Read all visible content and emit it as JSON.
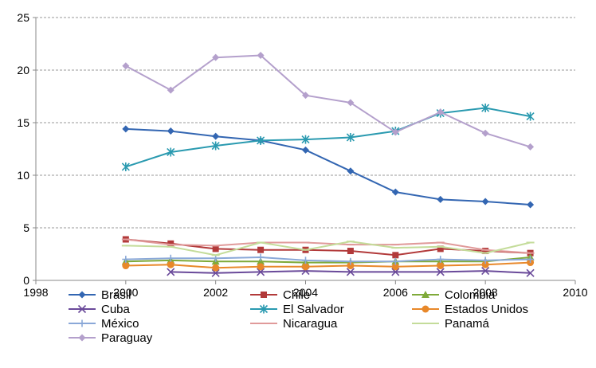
{
  "chart_data": {
    "type": "line",
    "title": "",
    "xlabel": "",
    "ylabel": "",
    "xlim": [
      1998,
      2010
    ],
    "ylim": [
      0,
      25
    ],
    "x_ticks": [
      1998,
      2000,
      2002,
      2004,
      2006,
      2008,
      2010
    ],
    "y_ticks": [
      0,
      5,
      10,
      15,
      20,
      25
    ],
    "grid": "horizontal dashed",
    "legend_position": "bottom",
    "x": [
      2000,
      2001,
      2002,
      2003,
      2004,
      2005,
      2006,
      2007,
      2008,
      2009
    ],
    "series": [
      {
        "name": "Brasil",
        "color": "#3366b2",
        "marker": "diamond",
        "values": [
          14.4,
          14.2,
          13.7,
          13.3,
          12.4,
          10.4,
          8.4,
          7.7,
          7.5,
          7.2
        ]
      },
      {
        "name": "Chile",
        "color": "#b23a3a",
        "marker": "square",
        "values": [
          3.9,
          3.5,
          3.0,
          2.9,
          2.9,
          2.8,
          2.4,
          3.0,
          2.8,
          2.6
        ]
      },
      {
        "name": "Colombia",
        "color": "#7faa3a",
        "marker": "triangle",
        "values": [
          1.8,
          1.9,
          1.8,
          1.8,
          1.7,
          1.7,
          1.8,
          1.8,
          1.8,
          2.2
        ]
      },
      {
        "name": "Cuba",
        "color": "#6a4a9a",
        "marker": "x",
        "values": [
          null,
          0.8,
          0.7,
          0.8,
          0.9,
          0.8,
          0.8,
          0.8,
          0.9,
          0.7
        ]
      },
      {
        "name": "El Salvador",
        "color": "#2a9ab0",
        "marker": "asterisk",
        "values": [
          10.8,
          12.2,
          12.8,
          13.3,
          13.4,
          13.6,
          14.2,
          15.9,
          16.4,
          15.6
        ]
      },
      {
        "name": "Estados Unidos",
        "color": "#e8882a",
        "marker": "circle",
        "values": [
          1.4,
          1.5,
          1.2,
          1.3,
          1.3,
          1.4,
          1.3,
          1.4,
          1.5,
          1.7
        ]
      },
      {
        "name": "México",
        "color": "#8aa8d8",
        "marker": "plus",
        "values": [
          2.0,
          2.1,
          2.1,
          2.2,
          1.9,
          1.8,
          1.8,
          2.0,
          1.9,
          2.0
        ]
      },
      {
        "name": "Nicaragua",
        "color": "#e09a9a",
        "marker": "dash",
        "values": [
          3.9,
          3.4,
          3.3,
          3.6,
          3.6,
          3.4,
          3.4,
          3.6,
          2.9,
          2.6
        ]
      },
      {
        "name": "Panamá",
        "color": "#c4dc9a",
        "marker": "dash",
        "values": [
          3.3,
          3.2,
          2.4,
          3.6,
          2.9,
          3.7,
          3.1,
          3.2,
          2.6,
          3.6
        ]
      },
      {
        "name": "Paraguay",
        "color": "#b4a0cc",
        "marker": "diamond",
        "values": [
          20.4,
          18.1,
          21.2,
          21.4,
          17.6,
          16.9,
          14.1,
          16.0,
          14.0,
          12.7
        ]
      }
    ]
  }
}
